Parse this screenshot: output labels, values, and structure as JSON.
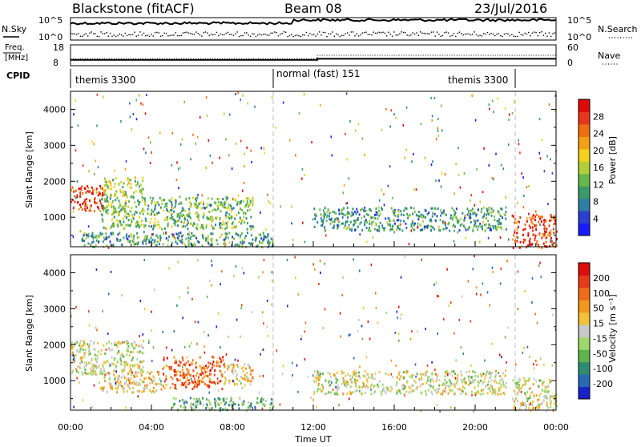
{
  "header": {
    "station": "Blackstone (fitACF)",
    "beam": "Beam 08",
    "date": "23/Jul/2016"
  },
  "noise_panel": {
    "left_label": "N.Sky",
    "left_ticks": [
      "10^5",
      "10^0"
    ],
    "right_label": "N.Search",
    "right_ticks": [
      "10^5",
      "10^0"
    ]
  },
  "freq_panel": {
    "left_label_line1": "Freq.",
    "left_label_line2": "[MHz]",
    "left_ticks": [
      "18",
      "8"
    ],
    "right_label": "Nave",
    "right_ticks": [
      "60",
      "0"
    ]
  },
  "cpid_panel": {
    "label": "CPID",
    "segments": [
      {
        "name": "themis 3300",
        "start_hour": 0,
        "end_hour": 10
      },
      {
        "name": "normal (fast) 151",
        "start_hour": 10,
        "end_hour": 22
      },
      {
        "name": "themis 3300",
        "start_hour": 22,
        "end_hour": 24
      }
    ]
  },
  "time_axis": {
    "label": "Time UT",
    "ticks": [
      "00:00",
      "04:00",
      "08:00",
      "12:00",
      "16:00",
      "20:00",
      "00:00"
    ]
  },
  "power_panel": {
    "ylabel": "Slant Range [km]",
    "yticks": [
      "1000",
      "2000",
      "3000",
      "4000"
    ],
    "colorbar_label": "Power [dB]",
    "colorbar_ticks": [
      "4",
      "8",
      "12",
      "16",
      "20",
      "24",
      "28"
    ]
  },
  "velocity_panel": {
    "ylabel": "Slant Range [km]",
    "yticks": [
      "1000",
      "2000",
      "3000",
      "4000"
    ],
    "colorbar_label": "Velocity [m s⁻¹]",
    "colorbar_ticks": [
      "200",
      "100",
      "50",
      "15",
      "-15",
      "-50",
      "-100",
      "-200"
    ]
  },
  "chart_data": {
    "type": "heatmap",
    "x_range_hours": [
      0,
      24
    ],
    "y_range_km": [
      180,
      4500
    ],
    "power_colors": [
      "#1a1aff",
      "#2a3ed0",
      "#2e7fa4",
      "#3b9a6a",
      "#66b84a",
      "#b2cf37",
      "#f2d21a",
      "#f5a014",
      "#f06e12",
      "#e8351c",
      "#dd0a0a"
    ],
    "velocity_colors": [
      "#1820c8",
      "#2868b4",
      "#2e8c70",
      "#5fb34b",
      "#9ed86a",
      "#c8c8c8",
      "#f3c13a",
      "#f3981c",
      "#ef6d1a",
      "#e83a1a",
      "#df0c0c"
    ],
    "power_scatter": [
      {
        "t_start": 0.0,
        "t_end": 1.6,
        "r_start": 1200,
        "r_end": 1900,
        "level": 9
      },
      {
        "t_start": 1.6,
        "t_end": 3.6,
        "r_start": 1600,
        "r_end": 2150,
        "level": 5
      },
      {
        "t_start": 1.5,
        "t_end": 9.0,
        "r_start": 700,
        "r_end": 1600,
        "level": 4
      },
      {
        "t_start": 0.5,
        "t_end": 10.0,
        "r_start": 200,
        "r_end": 600,
        "level": 3
      },
      {
        "t_start": 12.0,
        "t_end": 21.5,
        "r_start": 650,
        "r_end": 1300,
        "level": 3
      },
      {
        "t_start": 21.8,
        "t_end": 24.0,
        "r_start": 180,
        "r_end": 1100,
        "level": 9
      }
    ],
    "velocity_scatter": [
      {
        "t_start": 0.0,
        "t_end": 3.6,
        "r_start": 1200,
        "r_end": 2150,
        "level": 5
      },
      {
        "t_start": 1.5,
        "t_end": 4.5,
        "r_start": 700,
        "r_end": 1300,
        "level": 6
      },
      {
        "t_start": 4.5,
        "t_end": 7.5,
        "r_start": 800,
        "r_end": 1700,
        "level": 8
      },
      {
        "t_start": 7.5,
        "t_end": 9.0,
        "r_start": 900,
        "r_end": 1500,
        "level": 6
      },
      {
        "t_start": 5.0,
        "t_end": 10.0,
        "r_start": 200,
        "r_end": 550,
        "level": 3
      },
      {
        "t_start": 12.0,
        "t_end": 21.5,
        "r_start": 650,
        "r_end": 1300,
        "level": 5
      },
      {
        "t_start": 21.8,
        "t_end": 24.0,
        "r_start": 180,
        "r_end": 1100,
        "level": 5
      }
    ],
    "nsky_trace": {
      "early": 4.8,
      "late": 5.1
    },
    "frequency_mhz": {
      "before_12": 10.8,
      "after_12": 11.3
    },
    "nave": {
      "before_12": 20,
      "after_12": 30
    }
  }
}
